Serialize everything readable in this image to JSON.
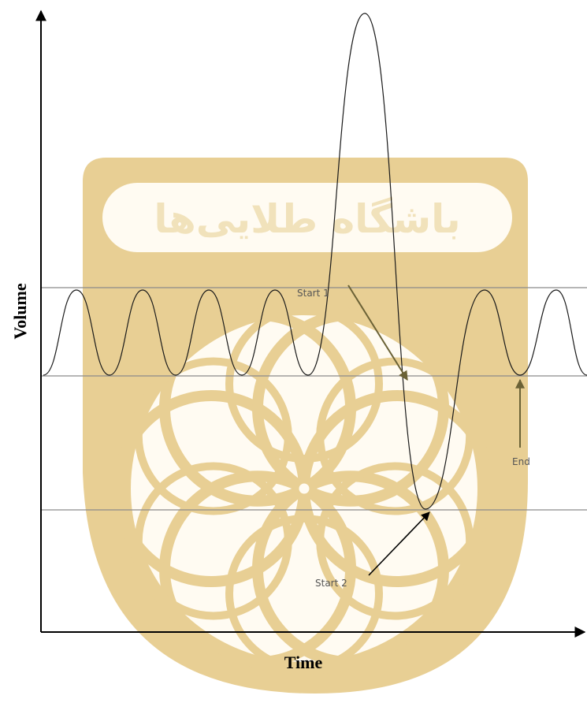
{
  "axes": {
    "x_label": "Time",
    "y_label": "Volume"
  },
  "annotations": {
    "start1": "Start 1",
    "start2": "Start 2",
    "end": "End"
  },
  "watermark": {
    "text": "باشگاه طلایی‌ها",
    "color": "#e8cf94",
    "text_color": "#f4ead0"
  },
  "colors": {
    "axis": "#000000",
    "reference_lines": "#8a8a8a",
    "waveform": "#1a1a1a",
    "annotation_arrow_start1": "#6b6236",
    "annotation_arrow_start2": "#000000"
  }
}
